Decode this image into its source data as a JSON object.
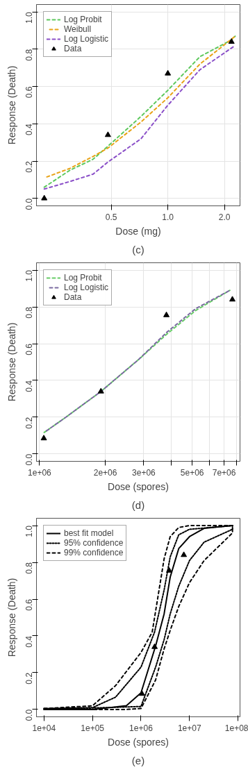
{
  "chart_data": [
    {
      "type": "line",
      "xlabel": "Dose (mg)",
      "ylabel": "Response (Death)",
      "annotations": [
        "(c)"
      ],
      "log": "x",
      "grid": true,
      "legend": "top left",
      "xlim": [
        0.2,
        2.42
      ],
      "ylim": [
        -0.04,
        1.04
      ],
      "xticks": [
        0.5,
        {
          "value": 1,
          "label": "1.0"
        },
        {
          "value": 2,
          "label": "2.0"
        }
      ],
      "yticks": [
        {
          "value": 0,
          "label": "0.0"
        },
        {
          "value": 0.2,
          "label": "0.2"
        },
        {
          "value": 0.4,
          "label": "0.4"
        },
        {
          "value": 0.6,
          "label": "0.6"
        },
        {
          "value": 0.8,
          "label": "0.8"
        },
        {
          "value": 1,
          "label": "1.0"
        }
      ],
      "series": [
        {
          "name": "Log Probit",
          "line_style": "dashed",
          "color": "#5cc85c",
          "x": [
            0.22,
            0.3,
            0.4,
            0.48,
            0.72,
            1.0,
            1.48,
            2.18,
            2.28
          ],
          "values": [
            0.06,
            0.15,
            0.21,
            0.28,
            0.44,
            0.58,
            0.76,
            0.85,
            0.87
          ]
        },
        {
          "name": "Weibull",
          "line_style": "dashed",
          "color": "#e8a317",
          "x": [
            0.22,
            0.3,
            0.4,
            0.48,
            0.72,
            1.0,
            1.48,
            2.28
          ],
          "values": [
            0.11,
            0.16,
            0.225,
            0.27,
            0.41,
            0.54,
            0.72,
            0.87
          ]
        },
        {
          "name": "Log Logistic",
          "line_style": "dashed",
          "color": "#8a4fc8",
          "x": [
            0.22,
            0.3,
            0.4,
            0.48,
            0.72,
            1.0,
            1.48,
            2.28
          ],
          "values": [
            0.05,
            0.09,
            0.13,
            0.195,
            0.32,
            0.5,
            0.69,
            0.82
          ]
        },
        {
          "name": "Data",
          "type": "scatter",
          "marker": "triangle",
          "color": "#000000",
          "x": [
            0.22,
            0.48,
            1.0,
            2.18
          ],
          "values": [
            0,
            0.34,
            0.67,
            0.84
          ]
        }
      ]
    },
    {
      "type": "line",
      "xlabel": "Dose (spores)",
      "ylabel": "Response (Death)",
      "annotations": [
        "(d)"
      ],
      "log": "x",
      "grid": true,
      "legend": "top left",
      "xlim": [
        968000,
        8280000
      ],
      "ylim": [
        -0.04,
        1.04
      ],
      "xticks": [
        {
          "value": 1000000,
          "label": "1e+06"
        },
        {
          "value": 2000000,
          "label": "2e+06"
        },
        {
          "value": 3000000,
          "label": "3e+06"
        },
        {
          "value": 4000000,
          "label": null
        },
        {
          "value": 5000000,
          "label": "5e+06"
        },
        {
          "value": 6000000,
          "label": null
        },
        {
          "value": 7000000,
          "label": "7e+06"
        },
        {
          "value": 8000000,
          "label": null
        }
      ],
      "yticks": [
        {
          "value": 0,
          "label": "0.0"
        },
        {
          "value": 0.2,
          "label": "0.2"
        },
        {
          "value": 0.4,
          "label": "0.4"
        },
        {
          "value": 0.6,
          "label": "0.6"
        },
        {
          "value": 0.8,
          "label": "0.8"
        },
        {
          "value": 1,
          "label": "1.0"
        }
      ],
      "series": [
        {
          "name": "Log Probit",
          "line_style": "dashed",
          "color": "#66cc66",
          "x": [
            1050000,
            1320000,
            1910000,
            2850000,
            3810000,
            5180000,
            7440000
          ],
          "values": [
            0.117,
            0.2,
            0.34,
            0.515,
            0.65,
            0.78,
            0.89
          ]
        },
        {
          "name": "Log Logistic",
          "line_style": "dashed",
          "color": "#7a6aa0",
          "x": [
            1050000,
            1320000,
            1910000,
            2850000,
            3810000,
            5180000,
            7440000
          ],
          "values": [
            0.117,
            0.2,
            0.34,
            0.515,
            0.66,
            0.79,
            0.89
          ]
        },
        {
          "name": "Data",
          "type": "scatter",
          "marker": "triangle",
          "color": "#000000",
          "x": [
            1046000,
            1910000,
            3810000,
            7640000
          ],
          "values": [
            0.085,
            0.34,
            0.755,
            0.84
          ]
        }
      ]
    },
    {
      "type": "line",
      "xlabel": "Dose (spores)",
      "ylabel": "Response (Death)",
      "annotations": [
        "(e)"
      ],
      "log": "x",
      "grid": false,
      "legend": "top left",
      "xlim": [
        7000,
        110000000
      ],
      "ylim": [
        -0.04,
        1.04
      ],
      "xticks": [
        {
          "value": 10000,
          "label": "1e+04"
        },
        {
          "value": 100000,
          "label": "1e+05"
        },
        {
          "value": 1000000,
          "label": "1e+06"
        },
        {
          "value": 10000000,
          "label": "1e+07"
        },
        {
          "value": 100000000,
          "label": "1e+08"
        }
      ],
      "yticks": [
        {
          "value": 0,
          "label": "0.0"
        },
        {
          "value": 0.2,
          "label": "0.2"
        },
        {
          "value": 0.4,
          "label": "0.4"
        },
        {
          "value": 0.6,
          "label": "0.6"
        },
        {
          "value": 0.8,
          "label": "0.8"
        },
        {
          "value": 1,
          "label": "1.0"
        }
      ],
      "series": [
        {
          "name": "best fit model",
          "line_style": "solid",
          "color": "#000000",
          "x": [
            10000,
            100000,
            500000,
            1000000,
            2000000,
            3000000,
            4000000,
            6000000,
            10000000,
            20000000,
            77000000
          ],
          "values": [
            0,
            0,
            0.02,
            0.09,
            0.345,
            0.52,
            0.72,
            0.875,
            0.94,
            0.985,
            1.0
          ]
        },
        {
          "name": "95% confidence",
          "line_style": "dotted",
          "color": "#000000",
          "x": [
            10000,
            100000,
            300000,
            1000000,
            1900000,
            3000000,
            4000000,
            6000000,
            10000000,
            77000000,
            77000000,
            20000000,
            10000000,
            6000000,
            4000000,
            3000000,
            2000000,
            1000000,
            10000
          ],
          "values": [
            0.005,
            0.01,
            0.067,
            0.23,
            0.42,
            0.65,
            0.83,
            0.95,
            0.98,
            1.0,
            0.98,
            0.91,
            0.81,
            0.67,
            0.52,
            0.38,
            0.23,
            0.016,
            0
          ]
        },
        {
          "name": "99% confidence",
          "line_style": "dashed",
          "color": "#000000",
          "x": [
            10000,
            100000,
            300000,
            1000000,
            1700000,
            3000000,
            4000000,
            6000000,
            10000000,
            77000000,
            77000000,
            20000000,
            10000000,
            6000000,
            4000000,
            3000000,
            2000000,
            1000000,
            500000,
            10000
          ],
          "values": [
            0.005,
            0.02,
            0.13,
            0.31,
            0.42,
            0.82,
            0.94,
            0.99,
            1.0,
            1.0,
            0.96,
            0.81,
            0.69,
            0.56,
            0.43,
            0.33,
            0.16,
            0.005,
            0,
            0
          ]
        },
        {
          "type": "scatter",
          "marker": "triangle",
          "color": "#000000",
          "x": [
            1046000,
            1910000,
            3810000,
            7640000
          ],
          "values": [
            0.085,
            0.34,
            0.755,
            0.84
          ]
        }
      ]
    }
  ]
}
